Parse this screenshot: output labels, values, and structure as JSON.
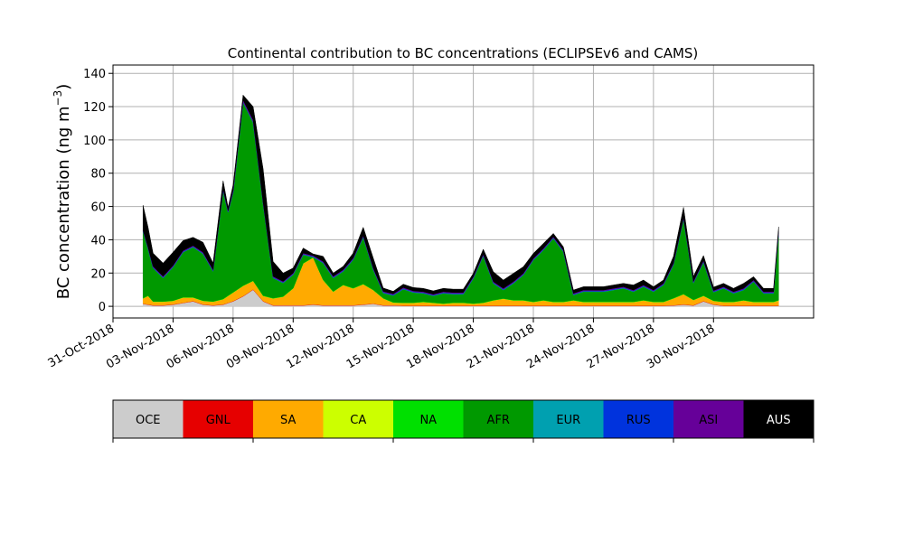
{
  "chart_data": [
    {
      "type": "area",
      "stacked": true,
      "title": "Continental contribution to BC concentrations (ECLIPSEv6 and CAMS)",
      "xlabel": "",
      "ylabel_main": "BC concentration (ng m",
      "ylabel_exp": "−3",
      "ylabel_close": ")",
      "xlim": [
        "2018-10-31",
        "2018-12-05"
      ],
      "ylim": [
        -7,
        145
      ],
      "grid": true,
      "xticks": [
        "2018-10-31",
        "2018-11-03",
        "2018-11-06",
        "2018-11-09",
        "2018-11-12",
        "2018-11-15",
        "2018-11-18",
        "2018-11-21",
        "2018-11-24",
        "2018-11-27",
        "2018-11-30"
      ],
      "xticklabels": [
        "31-Oct-2018",
        "03-Nov-2018",
        "06-Nov-2018",
        "09-Nov-2018",
        "12-Nov-2018",
        "15-Nov-2018",
        "18-Nov-2018",
        "21-Nov-2018",
        "24-Nov-2018",
        "27-Nov-2018",
        "30-Nov-2018"
      ],
      "yticks": [
        0,
        20,
        40,
        60,
        80,
        100,
        120,
        140
      ],
      "x": [
        "2018-11-01T12:00",
        "2018-11-01T18:00",
        "2018-11-02T00:00",
        "2018-11-02T12:00",
        "2018-11-03T00:00",
        "2018-11-03T12:00",
        "2018-11-04T00:00",
        "2018-11-04T12:00",
        "2018-11-05T00:00",
        "2018-11-05T12:00",
        "2018-11-05T18:00",
        "2018-11-06T00:00",
        "2018-11-06T12:00",
        "2018-11-07T00:00",
        "2018-11-07T12:00",
        "2018-11-08T00:00",
        "2018-11-08T12:00",
        "2018-11-09T00:00",
        "2018-11-09T12:00",
        "2018-11-10T00:00",
        "2018-11-10T12:00",
        "2018-11-11T00:00",
        "2018-11-11T12:00",
        "2018-11-12T00:00",
        "2018-11-12T12:00",
        "2018-11-13T00:00",
        "2018-11-13T12:00",
        "2018-11-14T00:00",
        "2018-11-14T12:00",
        "2018-11-15T00:00",
        "2018-11-15T12:00",
        "2018-11-16T00:00",
        "2018-11-16T12:00",
        "2018-11-17T00:00",
        "2018-11-17T12:00",
        "2018-11-18T00:00",
        "2018-11-18T12:00",
        "2018-11-19T00:00",
        "2018-11-19T12:00",
        "2018-11-20T00:00",
        "2018-11-20T12:00",
        "2018-11-21T00:00",
        "2018-11-21T12:00",
        "2018-11-22T00:00",
        "2018-11-22T12:00",
        "2018-11-23T00:00",
        "2018-11-23T12:00",
        "2018-11-24T00:00",
        "2018-11-24T12:00",
        "2018-11-25T00:00",
        "2018-11-25T12:00",
        "2018-11-26T00:00",
        "2018-11-26T12:00",
        "2018-11-27T00:00",
        "2018-11-27T12:00",
        "2018-11-28T00:00",
        "2018-11-28T12:00",
        "2018-11-29T00:00",
        "2018-11-29T12:00",
        "2018-11-30T00:00",
        "2018-11-30T12:00",
        "2018-12-01T00:00",
        "2018-12-01T12:00",
        "2018-12-02T00:00",
        "2018-12-02T12:00",
        "2018-12-03T00:00",
        "2018-12-03T06:00"
      ],
      "series": [
        {
          "name": "OCE",
          "color": "#cccccc",
          "values": [
            1.5,
            1,
            0.5,
            0.5,
            1,
            2,
            3,
            1,
            0.5,
            1,
            2,
            3,
            6,
            10,
            3,
            0.5,
            0.5,
            0.5,
            0.5,
            1,
            0.5,
            0.5,
            0.5,
            0.5,
            1,
            1.5,
            0.5,
            0.5,
            0.3,
            0.3,
            0.3,
            0.3,
            0.3,
            0.3,
            0.3,
            0.3,
            0.3,
            0.3,
            0.3,
            0.3,
            0.3,
            0.3,
            0.3,
            0.3,
            0.3,
            0.3,
            0.3,
            0.3,
            0.3,
            0.3,
            0.3,
            0.3,
            0.3,
            0.3,
            0.3,
            0.5,
            1,
            0.5,
            3,
            1,
            0.3,
            0.3,
            0.3,
            0.3,
            0.3,
            0.3,
            0.3
          ]
        },
        {
          "name": "GNL",
          "color": "#e60000",
          "values": [
            0.2,
            0.2,
            0.2,
            0.2,
            0.2,
            0.2,
            0.2,
            0.2,
            0.2,
            0.2,
            0.2,
            0.2,
            0.2,
            0.2,
            0.2,
            0.2,
            0.2,
            0.2,
            0.2,
            0.2,
            0.2,
            0.2,
            0.2,
            0.2,
            0.2,
            0.2,
            0.2,
            0.2,
            0.2,
            0.2,
            0.2,
            0.2,
            0.2,
            0.2,
            0.2,
            0.2,
            0.2,
            0.2,
            0.2,
            0.2,
            0.2,
            0.2,
            0.2,
            0.2,
            0.2,
            0.2,
            0.2,
            0.2,
            0.2,
            0.2,
            0.2,
            0.2,
            0.2,
            0.2,
            0.2,
            0.2,
            0.2,
            0.2,
            0.2,
            0.2,
            0.2,
            0.2,
            0.2,
            0.2,
            0.2,
            0.2,
            0.2
          ]
        },
        {
          "name": "SA",
          "color": "#ffaa00",
          "values": [
            3,
            5,
            2,
            2,
            2,
            3,
            2,
            2,
            2,
            3,
            4,
            5,
            6,
            5,
            3,
            4,
            5,
            10,
            25,
            28,
            15,
            8,
            12,
            10,
            12,
            8,
            4,
            1.5,
            1.5,
            1.5,
            2,
            1.5,
            1,
            1.5,
            1.5,
            1,
            1.5,
            3,
            4,
            3,
            3,
            2,
            3,
            2,
            2,
            3,
            2,
            2,
            2,
            2,
            2,
            2,
            3,
            2,
            2,
            4,
            6,
            3,
            3,
            2,
            2,
            2,
            3,
            2,
            2,
            2,
            3
          ]
        },
        {
          "name": "CA",
          "color": "#ccff00",
          "values": [
            0.1,
            0.1,
            0.1,
            0.1,
            0.1,
            0.1,
            0.1,
            0.1,
            0.1,
            0.1,
            0.1,
            0.1,
            0.1,
            0.1,
            0.1,
            0.1,
            0.1,
            0.1,
            0.1,
            0.1,
            0.1,
            0.1,
            0.1,
            0.1,
            0.1,
            0.1,
            0.1,
            0.1,
            0.1,
            0.1,
            0.1,
            0.1,
            0.1,
            0.1,
            0.1,
            0.1,
            0.1,
            0.1,
            0.1,
            0.1,
            0.1,
            0.1,
            0.1,
            0.1,
            0.1,
            0.1,
            0.1,
            0.1,
            0.1,
            0.1,
            0.1,
            0.1,
            0.1,
            0.1,
            0.1,
            0.1,
            0.1,
            0.1,
            0.1,
            0.1,
            0.1,
            0.1,
            0.1,
            0.1,
            0.1,
            0.1,
            0.1
          ]
        },
        {
          "name": "NA",
          "color": "#00e000",
          "values": [
            0.2,
            0.2,
            0.2,
            0.2,
            0.2,
            0.2,
            0.2,
            0.2,
            0.2,
            0.2,
            0.2,
            0.2,
            0.2,
            0.2,
            0.2,
            0.2,
            0.2,
            0.2,
            0.2,
            0.2,
            0.2,
            0.2,
            0.2,
            0.2,
            0.2,
            0.2,
            0.2,
            0.2,
            0.2,
            0.2,
            0.2,
            0.2,
            0.2,
            0.2,
            0.2,
            0.2,
            0.2,
            0.2,
            0.2,
            0.2,
            0.2,
            0.2,
            0.2,
            0.2,
            0.2,
            0.2,
            0.2,
            0.2,
            0.2,
            0.2,
            0.2,
            0.2,
            0.2,
            0.2,
            0.2,
            0.2,
            0.2,
            0.2,
            0.2,
            0.2,
            0.2,
            0.2,
            0.2,
            0.2,
            0.2,
            0.2,
            0.2
          ]
        },
        {
          "name": "AFR",
          "color": "#009900",
          "values": [
            40,
            28,
            20,
            14,
            20,
            27,
            30,
            28,
            18,
            65,
            50,
            60,
            110,
            95,
            55,
            12,
            8,
            8,
            5,
            0,
            10,
            8,
            8,
            17,
            28,
            12,
            3,
            4,
            8,
            6,
            5,
            4,
            6,
            5,
            5,
            15,
            28,
            10,
            5,
            10,
            15,
            25,
            30,
            38,
            30,
            3,
            6,
            6,
            6,
            7,
            8,
            6,
            8,
            6,
            10,
            20,
            45,
            10,
            20,
            5,
            8,
            5,
            6,
            12,
            5,
            5,
            40
          ]
        },
        {
          "name": "EUR",
          "color": "#00a0b0",
          "values": [
            0.2,
            0.2,
            0.2,
            0.2,
            0.2,
            0.2,
            0.2,
            0.2,
            0.2,
            0.2,
            0.2,
            0.2,
            0.2,
            0.2,
            0.2,
            0.2,
            0.2,
            0.2,
            0.2,
            0.2,
            0.2,
            0.2,
            0.2,
            0.2,
            0.2,
            0.2,
            0.2,
            0.2,
            0.2,
            0.2,
            0.2,
            0.2,
            0.2,
            0.2,
            0.2,
            0.2,
            0.2,
            0.2,
            0.2,
            0.2,
            0.2,
            0.2,
            0.2,
            0.2,
            0.2,
            0.2,
            0.2,
            0.2,
            0.2,
            0.2,
            0.2,
            0.2,
            0.2,
            0.2,
            0.2,
            0.2,
            0.2,
            0.2,
            0.2,
            0.2,
            0.2,
            0.2,
            0.2,
            0.2,
            0.2,
            0.2,
            0.2
          ]
        },
        {
          "name": "RUS",
          "color": "#0033dd",
          "values": [
            0.3,
            0.3,
            0.3,
            0.3,
            0.3,
            0.3,
            0.3,
            0.3,
            0.3,
            0.3,
            0.3,
            0.3,
            0.3,
            0.3,
            0.3,
            0.3,
            0.3,
            0.3,
            0.3,
            0.3,
            0.3,
            0.3,
            0.3,
            0.3,
            0.3,
            0.3,
            0.3,
            0.3,
            0.3,
            0.3,
            0.3,
            0.3,
            0.3,
            0.3,
            0.3,
            0.3,
            0.3,
            0.3,
            0.3,
            0.3,
            0.3,
            0.3,
            0.3,
            0.3,
            0.3,
            0.3,
            0.3,
            0.3,
            0.3,
            0.3,
            0.3,
            0.3,
            0.3,
            0.3,
            0.3,
            0.3,
            0.3,
            0.3,
            0.3,
            0.3,
            0.3,
            0.3,
            0.3,
            0.3,
            0.3,
            0.3,
            0.3
          ]
        },
        {
          "name": "ASI",
          "color": "#660099",
          "values": [
            0.3,
            0.5,
            0.5,
            0.5,
            0.5,
            0.5,
            0.5,
            0.5,
            0.5,
            0.5,
            0.5,
            1,
            1,
            1,
            0.5,
            0.5,
            0.5,
            0.5,
            0.5,
            0.5,
            0.5,
            0.5,
            0.5,
            0.5,
            0.5,
            0.5,
            0.5,
            0.5,
            0.5,
            0.5,
            0.5,
            0.5,
            0.5,
            0.5,
            0.5,
            0.5,
            0.5,
            0.5,
            0.5,
            0.5,
            0.5,
            0.5,
            0.5,
            0.5,
            0.5,
            0.5,
            0.5,
            0.5,
            0.5,
            0.5,
            0.5,
            0.5,
            0.5,
            0.5,
            0.5,
            0.5,
            0.5,
            0.5,
            0.5,
            0.5,
            0.5,
            0.5,
            0.5,
            0.5,
            0.5,
            0.5,
            0.5
          ]
        },
        {
          "name": "AUS",
          "color": "#000000",
          "values": [
            15,
            12,
            8,
            8,
            8,
            6,
            5,
            6,
            4,
            5,
            2,
            3,
            3,
            8,
            20,
            9,
            5,
            3,
            3,
            1,
            3,
            2,
            2,
            3,
            5,
            6,
            2,
            1.5,
            2,
            2,
            2,
            2,
            2,
            2,
            2,
            2,
            3,
            6,
            5,
            5,
            4,
            3,
            3,
            2,
            2,
            2,
            2,
            2,
            2,
            2,
            2,
            3,
            3,
            2,
            2,
            4,
            6,
            3,
            3,
            2,
            2,
            2,
            3,
            2,
            2,
            2,
            3
          ]
        }
      ]
    }
  ],
  "colorbar": {
    "labels": [
      "OCE",
      "GNL",
      "SA",
      "CA",
      "NA",
      "AFR",
      "EUR",
      "RUS",
      "ASI",
      "AUS"
    ],
    "colors": [
      "#cccccc",
      "#e60000",
      "#ffaa00",
      "#ccff00",
      "#00e000",
      "#009900",
      "#00a0b0",
      "#0033dd",
      "#660099",
      "#000000"
    ],
    "label_colors": [
      "#000000",
      "#000000",
      "#000000",
      "#000000",
      "#000000",
      "#000000",
      "#000000",
      "#000000",
      "#000000",
      "#ffffff"
    ]
  }
}
